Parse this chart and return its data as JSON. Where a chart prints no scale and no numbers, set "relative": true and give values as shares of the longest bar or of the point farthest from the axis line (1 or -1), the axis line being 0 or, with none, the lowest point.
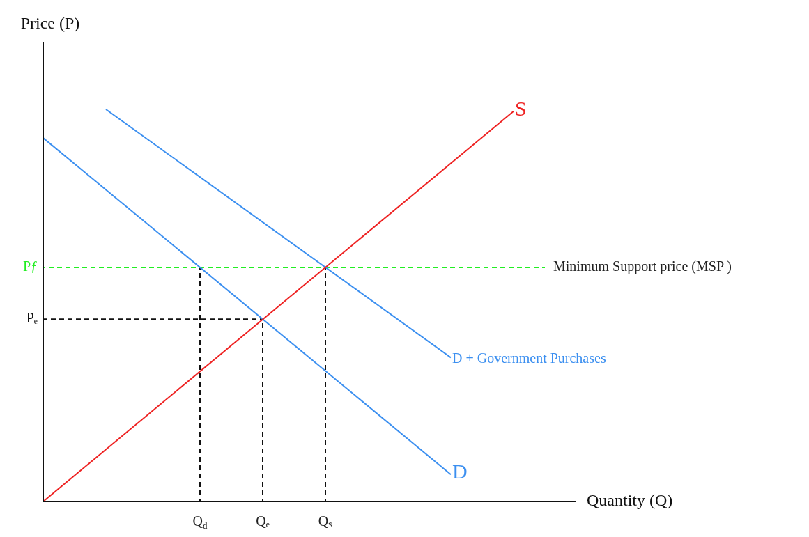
{
  "chart_data": {
    "type": "line",
    "relative": true,
    "xlabel": "Quantity (Q)",
    "ylabel": "Price (P)",
    "legend": false,
    "marker": "none",
    "categories": [
      null,
      null,
      null,
      null,
      null,
      "Q$_{d}$",
      null,
      "Qₑ",
      null,
      "Qₛ",
      null,
      null,
      null,
      null,
      null,
      null,
      null,
      null
    ],
    "series": [
      {
        "name": "S",
        "color": "#ee2222",
        "values": [
          0,
          null,
          null,
          null,
          null,
          null,
          null,
          null,
          null,
          null,
          null,
          null,
          null,
          null,
          null,
          0.995,
          null,
          null
        ]
      },
      {
        "name": "D",
        "color": "#3b8ff0",
        "values": [
          0.927,
          null,
          null,
          null,
          null,
          null,
          null,
          null,
          null,
          null,
          null,
          null,
          null,
          0.069,
          null,
          null,
          null,
          null
        ]
      },
      {
        "name": "D + Government Purchases",
        "color": "#3b8ff0",
        "values": [
          null,
          null,
          1,
          null,
          null,
          null,
          null,
          null,
          null,
          null,
          null,
          null,
          null,
          0.367,
          null,
          null,
          null,
          null
        ]
      },
      {
        "name": "Pƒ",
        "color": "#22ee22",
        "line_style": "dashed",
        "values": [
          0.597,
          null,
          null,
          null,
          null,
          null,
          null,
          null,
          null,
          null,
          null,
          null,
          null,
          null,
          null,
          null,
          0.597,
          null
        ]
      },
      {
        "name": "Pₑ",
        "color": "#111111",
        "line_style": "dashed",
        "values": [
          0.465,
          null,
          null,
          null,
          null,
          null,
          null,
          0.465,
          null,
          null,
          null,
          null,
          null,
          null,
          null,
          null,
          null,
          null
        ]
      },
      {
        "color": "#111111",
        "line_style": "dashed",
        "x": [
          "Q$_{d}$",
          "Q$_{d}$"
        ],
        "values": [
          0.597,
          0
        ]
      },
      {
        "color": "#111111",
        "line_style": "dashed",
        "x": [
          "Qₑ",
          "Qₑ"
        ],
        "values": [
          0.465,
          0
        ]
      },
      {
        "color": "#111111",
        "line_style": "dashed",
        "x": [
          "Qₛ",
          "Qₛ"
        ],
        "values": [
          0.597,
          0
        ]
      }
    ],
    "annotations": [
      "Minimum Support price (MSP )"
    ]
  }
}
